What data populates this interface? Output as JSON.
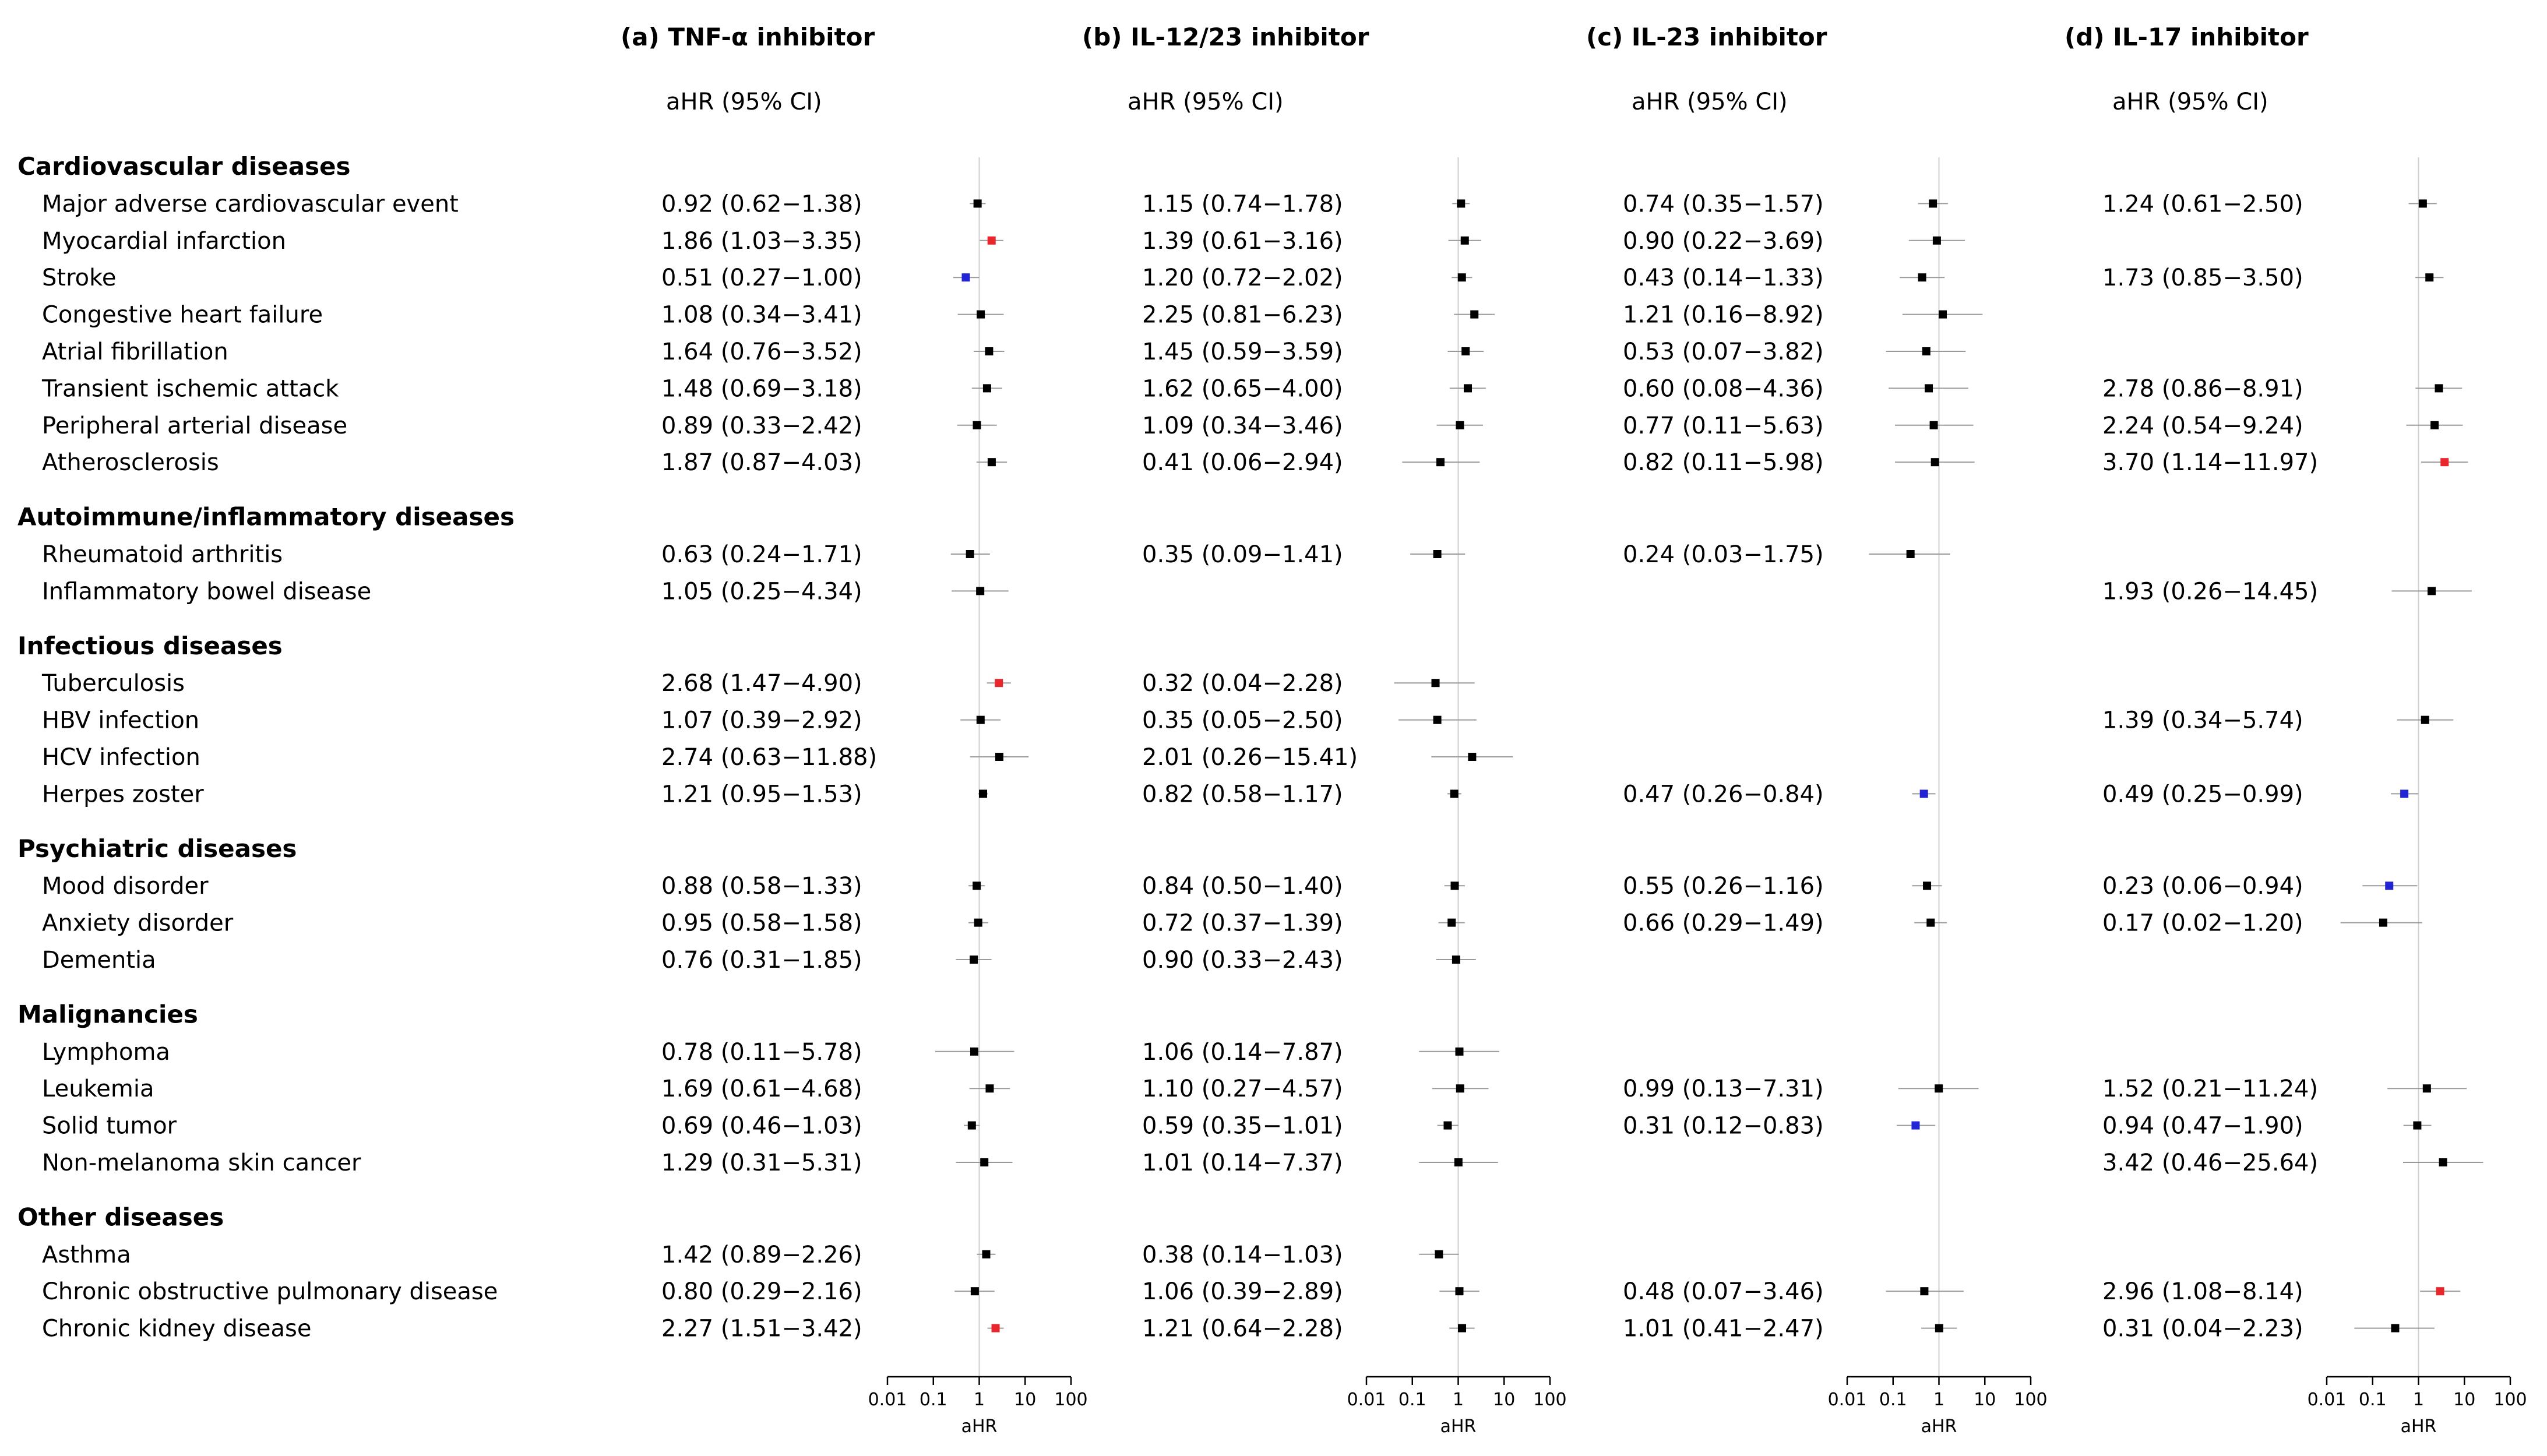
{
  "colors": {
    "default": "#000000",
    "increased": "#e8262c",
    "decreased": "#2323d6",
    "ci_line": "#9a9a9a",
    "ref_line": "#cfcfcf"
  },
  "chart_data": {
    "type": "forest",
    "x_scale": "log10",
    "xlim": [
      0.01,
      100
    ],
    "x_ticks": [
      0.01,
      0.1,
      1,
      10,
      100
    ],
    "x_tick_labels": [
      "0.01",
      "0.1",
      "1",
      "10",
      "100"
    ],
    "xlabel": "aHR",
    "reference": 1,
    "column_header": "aHR (95% CI)",
    "panels": [
      {
        "id": "a",
        "title": "(a) TNF-α inhibitor"
      },
      {
        "id": "b",
        "title": "(b) IL-12/23 inhibitor"
      },
      {
        "id": "c",
        "title": "(c) IL-23 inhibitor"
      },
      {
        "id": "d",
        "title": "(d) IL-17 inhibitor"
      }
    ],
    "groups": [
      {
        "category": "Cardiovascular diseases",
        "rows": [
          {
            "outcome": "Major adverse cardiovascular event",
            "results": [
              {
                "label": "0.92 (0.62−1.38)",
                "hr": 0.92,
                "lo": 0.62,
                "hi": 1.38,
                "sig": "none"
              },
              {
                "label": "1.15 (0.74−1.78)",
                "hr": 1.15,
                "lo": 0.74,
                "hi": 1.78,
                "sig": "none"
              },
              {
                "label": "0.74  (0.35−1.57)",
                "hr": 0.74,
                "lo": 0.35,
                "hi": 1.57,
                "sig": "none"
              },
              {
                "label": "1.24 (0.61−2.50)",
                "hr": 1.24,
                "lo": 0.61,
                "hi": 2.5,
                "sig": "none"
              }
            ]
          },
          {
            "outcome": "Myocardial infarction",
            "results": [
              {
                "label": "1.86 (1.03−3.35)",
                "hr": 1.86,
                "lo": 1.03,
                "hi": 3.35,
                "sig": "increased"
              },
              {
                "label": "1.39 (0.61−3.16)",
                "hr": 1.39,
                "lo": 0.61,
                "hi": 3.16,
                "sig": "none"
              },
              {
                "label": "0.90  (0.22−3.69)",
                "hr": 0.9,
                "lo": 0.22,
                "hi": 3.69,
                "sig": "none"
              },
              null
            ]
          },
          {
            "outcome": "Stroke",
            "results": [
              {
                "label": "0.51 (0.27−1.00)",
                "hr": 0.51,
                "lo": 0.27,
                "hi": 1.0,
                "sig": "decreased"
              },
              {
                "label": "1.20 (0.72−2.02)",
                "hr": 1.2,
                "lo": 0.72,
                "hi": 2.02,
                "sig": "none"
              },
              {
                "label": "0.43  (0.14−1.33)",
                "hr": 0.43,
                "lo": 0.14,
                "hi": 1.33,
                "sig": "none"
              },
              {
                "label": "1.73 (0.85−3.50)",
                "hr": 1.73,
                "lo": 0.85,
                "hi": 3.5,
                "sig": "none"
              }
            ]
          },
          {
            "outcome": "Congestive heart failure",
            "results": [
              {
                "label": "1.08 (0.34−3.41)",
                "hr": 1.08,
                "lo": 0.34,
                "hi": 3.41,
                "sig": "none"
              },
              {
                "label": "2.25 (0.81−6.23)",
                "hr": 2.25,
                "lo": 0.81,
                "hi": 6.23,
                "sig": "none"
              },
              {
                "label": "1.21  (0.16−8.92)",
                "hr": 1.21,
                "lo": 0.16,
                "hi": 8.92,
                "sig": "none"
              },
              null
            ]
          },
          {
            "outcome": "Atrial fibrillation",
            "results": [
              {
                "label": "1.64 (0.76−3.52)",
                "hr": 1.64,
                "lo": 0.76,
                "hi": 3.52,
                "sig": "none"
              },
              {
                "label": "1.45 (0.59−3.59)",
                "hr": 1.45,
                "lo": 0.59,
                "hi": 3.59,
                "sig": "none"
              },
              {
                "label": "0.53  (0.07−3.82)",
                "hr": 0.53,
                "lo": 0.07,
                "hi": 3.82,
                "sig": "none"
              },
              null
            ]
          },
          {
            "outcome": "Transient ischemic attack",
            "results": [
              {
                "label": "1.48 (0.69−3.18)",
                "hr": 1.48,
                "lo": 0.69,
                "hi": 3.18,
                "sig": "none"
              },
              {
                "label": "1.62 (0.65−4.00)",
                "hr": 1.62,
                "lo": 0.65,
                "hi": 4.0,
                "sig": "none"
              },
              {
                "label": "0.60  (0.08−4.36)",
                "hr": 0.6,
                "lo": 0.08,
                "hi": 4.36,
                "sig": "none"
              },
              {
                "label": "2.78 (0.86−8.91)",
                "hr": 2.78,
                "lo": 0.86,
                "hi": 8.91,
                "sig": "none"
              }
            ]
          },
          {
            "outcome": "Peripheral arterial disease",
            "results": [
              {
                "label": "0.89 (0.33−2.42)",
                "hr": 0.89,
                "lo": 0.33,
                "hi": 2.42,
                "sig": "none"
              },
              {
                "label": "1.09 (0.34−3.46)",
                "hr": 1.09,
                "lo": 0.34,
                "hi": 3.46,
                "sig": "none"
              },
              {
                "label": "0.77  (0.11−5.63)",
                "hr": 0.77,
                "lo": 0.11,
                "hi": 5.63,
                "sig": "none"
              },
              {
                "label": "2.24 (0.54−9.24)",
                "hr": 2.24,
                "lo": 0.54,
                "hi": 9.24,
                "sig": "none"
              }
            ]
          },
          {
            "outcome": "Atherosclerosis",
            "results": [
              {
                "label": "1.87 (0.87−4.03)",
                "hr": 1.87,
                "lo": 0.87,
                "hi": 4.03,
                "sig": "none"
              },
              {
                "label": "0.41 (0.06−2.94)",
                "hr": 0.41,
                "lo": 0.06,
                "hi": 2.94,
                "sig": "none"
              },
              {
                "label": "0.82  (0.11−5.98)",
                "hr": 0.82,
                "lo": 0.11,
                "hi": 5.98,
                "sig": "none"
              },
              {
                "label": "3.70 (1.14−11.97)",
                "hr": 3.7,
                "lo": 1.14,
                "hi": 11.97,
                "sig": "increased"
              }
            ]
          }
        ]
      },
      {
        "category": "Autoimmune/inflammatory diseases",
        "rows": [
          {
            "outcome": "Rheumatoid arthritis",
            "results": [
              {
                "label": "0.63 (0.24−1.71)",
                "hr": 0.63,
                "lo": 0.24,
                "hi": 1.71,
                "sig": "none"
              },
              {
                "label": "0.35 (0.09−1.41)",
                "hr": 0.35,
                "lo": 0.09,
                "hi": 1.41,
                "sig": "none"
              },
              {
                "label": "0.24  (0.03−1.75)",
                "hr": 0.24,
                "lo": 0.03,
                "hi": 1.75,
                "sig": "none"
              },
              null
            ]
          },
          {
            "outcome": "Inflammatory bowel disease",
            "results": [
              {
                "label": "1.05 (0.25−4.34)",
                "hr": 1.05,
                "lo": 0.25,
                "hi": 4.34,
                "sig": "none"
              },
              null,
              null,
              {
                "label": "1.93 (0.26−14.45)",
                "hr": 1.93,
                "lo": 0.26,
                "hi": 14.45,
                "sig": "none"
              }
            ]
          }
        ]
      },
      {
        "category": "Infectious diseases",
        "rows": [
          {
            "outcome": "Tuberculosis",
            "results": [
              {
                "label": "2.68 (1.47−4.90)",
                "hr": 2.68,
                "lo": 1.47,
                "hi": 4.9,
                "sig": "increased"
              },
              {
                "label": "0.32 (0.04−2.28)",
                "hr": 0.32,
                "lo": 0.04,
                "hi": 2.28,
                "sig": "none"
              },
              null,
              null
            ]
          },
          {
            "outcome": "HBV infection",
            "results": [
              {
                "label": "1.07 (0.39−2.92)",
                "hr": 1.07,
                "lo": 0.39,
                "hi": 2.92,
                "sig": "none"
              },
              {
                "label": "0.35 (0.05−2.50)",
                "hr": 0.35,
                "lo": 0.05,
                "hi": 2.5,
                "sig": "none"
              },
              null,
              {
                "label": "1.39 (0.34−5.74)",
                "hr": 1.39,
                "lo": 0.34,
                "hi": 5.74,
                "sig": "none"
              }
            ]
          },
          {
            "outcome": "HCV infection",
            "results": [
              {
                "label": "2.74 (0.63−11.88)",
                "hr": 2.74,
                "lo": 0.63,
                "hi": 11.88,
                "sig": "none"
              },
              {
                "label": "2.01 (0.26−15.41)",
                "hr": 2.01,
                "lo": 0.26,
                "hi": 15.41,
                "sig": "none"
              },
              null,
              null
            ]
          },
          {
            "outcome": "Herpes zoster",
            "results": [
              {
                "label": "1.21 (0.95−1.53)",
                "hr": 1.21,
                "lo": 0.95,
                "hi": 1.53,
                "sig": "none"
              },
              {
                "label": "0.82 (0.58−1.17)",
                "hr": 0.82,
                "lo": 0.58,
                "hi": 1.17,
                "sig": "none"
              },
              {
                "label": "0.47  (0.26−0.84)",
                "hr": 0.47,
                "lo": 0.26,
                "hi": 0.84,
                "sig": "decreased"
              },
              {
                "label": "0.49 (0.25−0.99)",
                "hr": 0.49,
                "lo": 0.25,
                "hi": 0.99,
                "sig": "decreased"
              }
            ]
          }
        ]
      },
      {
        "category": "Psychiatric diseases",
        "rows": [
          {
            "outcome": "Mood disorder",
            "results": [
              {
                "label": "0.88 (0.58−1.33)",
                "hr": 0.88,
                "lo": 0.58,
                "hi": 1.33,
                "sig": "none"
              },
              {
                "label": "0.84 (0.50−1.40)",
                "hr": 0.84,
                "lo": 0.5,
                "hi": 1.4,
                "sig": "none"
              },
              {
                "label": "0.55  (0.26−1.16)",
                "hr": 0.55,
                "lo": 0.26,
                "hi": 1.16,
                "sig": "none"
              },
              {
                "label": "0.23 (0.06−0.94)",
                "hr": 0.23,
                "lo": 0.06,
                "hi": 0.94,
                "sig": "decreased"
              }
            ]
          },
          {
            "outcome": "Anxiety disorder",
            "results": [
              {
                "label": "0.95 (0.58−1.58)",
                "hr": 0.95,
                "lo": 0.58,
                "hi": 1.58,
                "sig": "none"
              },
              {
                "label": "0.72 (0.37−1.39)",
                "hr": 0.72,
                "lo": 0.37,
                "hi": 1.39,
                "sig": "none"
              },
              {
                "label": "0.66  (0.29−1.49)",
                "hr": 0.66,
                "lo": 0.29,
                "hi": 1.49,
                "sig": "none"
              },
              {
                "label": "0.17 (0.02−1.20)",
                "hr": 0.17,
                "lo": 0.02,
                "hi": 1.2,
                "sig": "none"
              }
            ]
          },
          {
            "outcome": "Dementia",
            "results": [
              {
                "label": "0.76 (0.31−1.85)",
                "hr": 0.76,
                "lo": 0.31,
                "hi": 1.85,
                "sig": "none"
              },
              {
                "label": "0.90 (0.33−2.43)",
                "hr": 0.9,
                "lo": 0.33,
                "hi": 2.43,
                "sig": "none"
              },
              null,
              null
            ]
          }
        ]
      },
      {
        "category": "Malignancies",
        "rows": [
          {
            "outcome": "Lymphoma",
            "results": [
              {
                "label": "0.78 (0.11−5.78)",
                "hr": 0.78,
                "lo": 0.11,
                "hi": 5.78,
                "sig": "none"
              },
              {
                "label": "1.06 (0.14−7.87)",
                "hr": 1.06,
                "lo": 0.14,
                "hi": 7.87,
                "sig": "none"
              },
              null,
              null
            ]
          },
          {
            "outcome": "Leukemia",
            "results": [
              {
                "label": "1.69 (0.61−4.68)",
                "hr": 1.69,
                "lo": 0.61,
                "hi": 4.68,
                "sig": "none"
              },
              {
                "label": "1.10 (0.27−4.57)",
                "hr": 1.1,
                "lo": 0.27,
                "hi": 4.57,
                "sig": "none"
              },
              {
                "label": "0.99  (0.13−7.31)",
                "hr": 0.99,
                "lo": 0.13,
                "hi": 7.31,
                "sig": "none"
              },
              {
                "label": "1.52 (0.21−11.24)",
                "hr": 1.52,
                "lo": 0.21,
                "hi": 11.24,
                "sig": "none"
              }
            ]
          },
          {
            "outcome": "Solid tumor",
            "results": [
              {
                "label": "0.69 (0.46−1.03)",
                "hr": 0.69,
                "lo": 0.46,
                "hi": 1.03,
                "sig": "none"
              },
              {
                "label": "0.59 (0.35−1.01)",
                "hr": 0.59,
                "lo": 0.35,
                "hi": 1.01,
                "sig": "none"
              },
              {
                "label": "0.31  (0.12−0.83)",
                "hr": 0.31,
                "lo": 0.12,
                "hi": 0.83,
                "sig": "decreased"
              },
              {
                "label": "0.94 (0.47−1.90)",
                "hr": 0.94,
                "lo": 0.47,
                "hi": 1.9,
                "sig": "none"
              }
            ]
          },
          {
            "outcome": "Non-melanoma skin cancer",
            "results": [
              {
                "label": "1.29 (0.31−5.31)",
                "hr": 1.29,
                "lo": 0.31,
                "hi": 5.31,
                "sig": "none"
              },
              {
                "label": "1.01 (0.14−7.37)",
                "hr": 1.01,
                "lo": 0.14,
                "hi": 7.37,
                "sig": "none"
              },
              null,
              {
                "label": "3.42 (0.46−25.64)",
                "hr": 3.42,
                "lo": 0.46,
                "hi": 25.64,
                "sig": "none"
              }
            ]
          }
        ]
      },
      {
        "category": "Other diseases",
        "rows": [
          {
            "outcome": "Asthma",
            "results": [
              {
                "label": "1.42 (0.89−2.26)",
                "hr": 1.42,
                "lo": 0.89,
                "hi": 2.26,
                "sig": "none"
              },
              {
                "label": "0.38 (0.14−1.03)",
                "hr": 0.38,
                "lo": 0.14,
                "hi": 1.03,
                "sig": "none"
              },
              null,
              null
            ]
          },
          {
            "outcome": "Chronic obstructive pulmonary disease",
            "results": [
              {
                "label": "0.80 (0.29−2.16)",
                "hr": 0.8,
                "lo": 0.29,
                "hi": 2.16,
                "sig": "none"
              },
              {
                "label": "1.06 (0.39−2.89)",
                "hr": 1.06,
                "lo": 0.39,
                "hi": 2.89,
                "sig": "none"
              },
              {
                "label": "0.48  (0.07−3.46)",
                "hr": 0.48,
                "lo": 0.07,
                "hi": 3.46,
                "sig": "none"
              },
              {
                "label": "2.96 (1.08−8.14)",
                "hr": 2.96,
                "lo": 1.08,
                "hi": 8.14,
                "sig": "increased"
              }
            ]
          },
          {
            "outcome": "Chronic kidney disease",
            "results": [
              {
                "label": "2.27 (1.51−3.42)",
                "hr": 2.27,
                "lo": 1.51,
                "hi": 3.42,
                "sig": "increased"
              },
              {
                "label": "1.21 (0.64−2.28)",
                "hr": 1.21,
                "lo": 0.64,
                "hi": 2.28,
                "sig": "none"
              },
              {
                "label": "1.01  (0.41−2.47)",
                "hr": 1.01,
                "lo": 0.41,
                "hi": 2.47,
                "sig": "none"
              },
              {
                "label": "0.31 (0.04−2.23)",
                "hr": 0.31,
                "lo": 0.04,
                "hi": 2.23,
                "sig": "none"
              }
            ]
          }
        ]
      }
    ]
  }
}
